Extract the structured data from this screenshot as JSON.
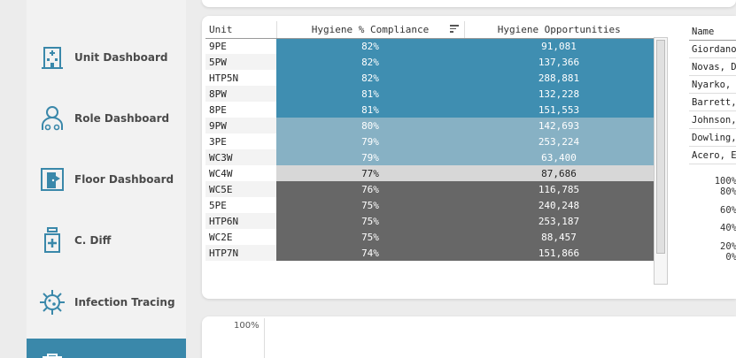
{
  "colors": {
    "accent": "#3a88aa",
    "high": "#3f8eb1",
    "mid": "#87b1c4",
    "neutral": "#d7d7d7",
    "low": "#676767"
  },
  "sidebar": {
    "items": [
      {
        "label": "Unit Dashboard",
        "icon": "hospital-building-icon"
      },
      {
        "label": "Role Dashboard",
        "icon": "staff-user-icon"
      },
      {
        "label": "Floor Dashboard",
        "icon": "floor-door-icon"
      },
      {
        "label": "C. Diff",
        "icon": "medicine-bottle-icon"
      },
      {
        "label": "Infection Tracing",
        "icon": "virus-icon"
      }
    ]
  },
  "unit_table": {
    "headers": {
      "unit": "Unit",
      "compliance": "Hygiene % Compliance",
      "opportunities": "Hygiene Opportunities"
    },
    "rows": [
      {
        "unit": "9PE",
        "compliance": "82%",
        "opportunities": "91,081",
        "tier": "high"
      },
      {
        "unit": "5PW",
        "compliance": "82%",
        "opportunities": "137,366",
        "tier": "high"
      },
      {
        "unit": "HTP5N",
        "compliance": "82%",
        "opportunities": "288,881",
        "tier": "high"
      },
      {
        "unit": "8PW",
        "compliance": "81%",
        "opportunities": "132,228",
        "tier": "high"
      },
      {
        "unit": "8PE",
        "compliance": "81%",
        "opportunities": "151,553",
        "tier": "high"
      },
      {
        "unit": "9PW",
        "compliance": "80%",
        "opportunities": "142,693",
        "tier": "mid"
      },
      {
        "unit": "3PE",
        "compliance": "79%",
        "opportunities": "253,224",
        "tier": "mid"
      },
      {
        "unit": "WC3W",
        "compliance": "79%",
        "opportunities": "63,400",
        "tier": "mid"
      },
      {
        "unit": "WC4W",
        "compliance": "77%",
        "opportunities": "87,686",
        "tier": "neutral"
      },
      {
        "unit": "WC5E",
        "compliance": "76%",
        "opportunities": "116,785",
        "tier": "low"
      },
      {
        "unit": "5PE",
        "compliance": "75%",
        "opportunities": "240,248",
        "tier": "low"
      },
      {
        "unit": "HTP6N",
        "compliance": "75%",
        "opportunities": "253,187",
        "tier": "low"
      },
      {
        "unit": "WC2E",
        "compliance": "75%",
        "opportunities": "88,457",
        "tier": "low"
      },
      {
        "unit": "HTP7N",
        "compliance": "74%",
        "opportunities": "151,866",
        "tier": "low"
      }
    ]
  },
  "name_table": {
    "header": "Name",
    "rows": [
      "Giordano",
      "Novas, D",
      "Nyarko, N",
      "Barrett, .",
      "Johnson,",
      "Dowling,",
      "Acero, Ev"
    ]
  },
  "mini_axis": [
    "100%",
    "80%",
    "60%",
    "40%",
    "20%",
    "0%"
  ],
  "bottom_chart": {
    "y_axis_top": "100%"
  }
}
